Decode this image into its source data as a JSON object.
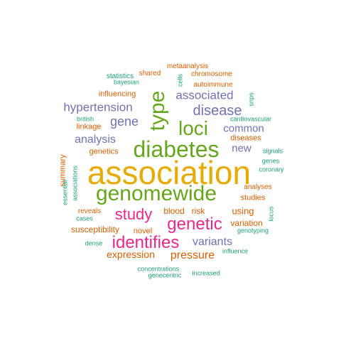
{
  "palette": {
    "gold": "#e6ab02",
    "green": "#66a61e",
    "magenta": "#e7298a",
    "purple": "#7570b3",
    "orange": "#d95f02",
    "teal": "#1b9e77"
  },
  "words": [
    "association",
    "genomewide",
    "diabetes",
    "loci",
    "type",
    "identifies",
    "genetic",
    "study",
    "disease",
    "associated",
    "hypertension",
    "gene",
    "common",
    "analysis",
    "new",
    "variants",
    "pressure",
    "expression",
    "using",
    "susceptibility",
    "metaanalysis",
    "shared",
    "chromosome",
    "statistics",
    "bayesian",
    "cells",
    "autoimmune",
    "influencing",
    "snps",
    "british",
    "cardiovascular",
    "linkage",
    "diseases",
    "genetics",
    "summary",
    "signals",
    "genes",
    "coronary",
    "essential",
    "associations",
    "analyses",
    "studies",
    "reveals",
    "cases",
    "blood",
    "risk",
    "locus",
    "variation",
    "novel",
    "genotyping",
    "dense",
    "influence",
    "concentrations",
    "increased",
    "genecentric"
  ]
}
